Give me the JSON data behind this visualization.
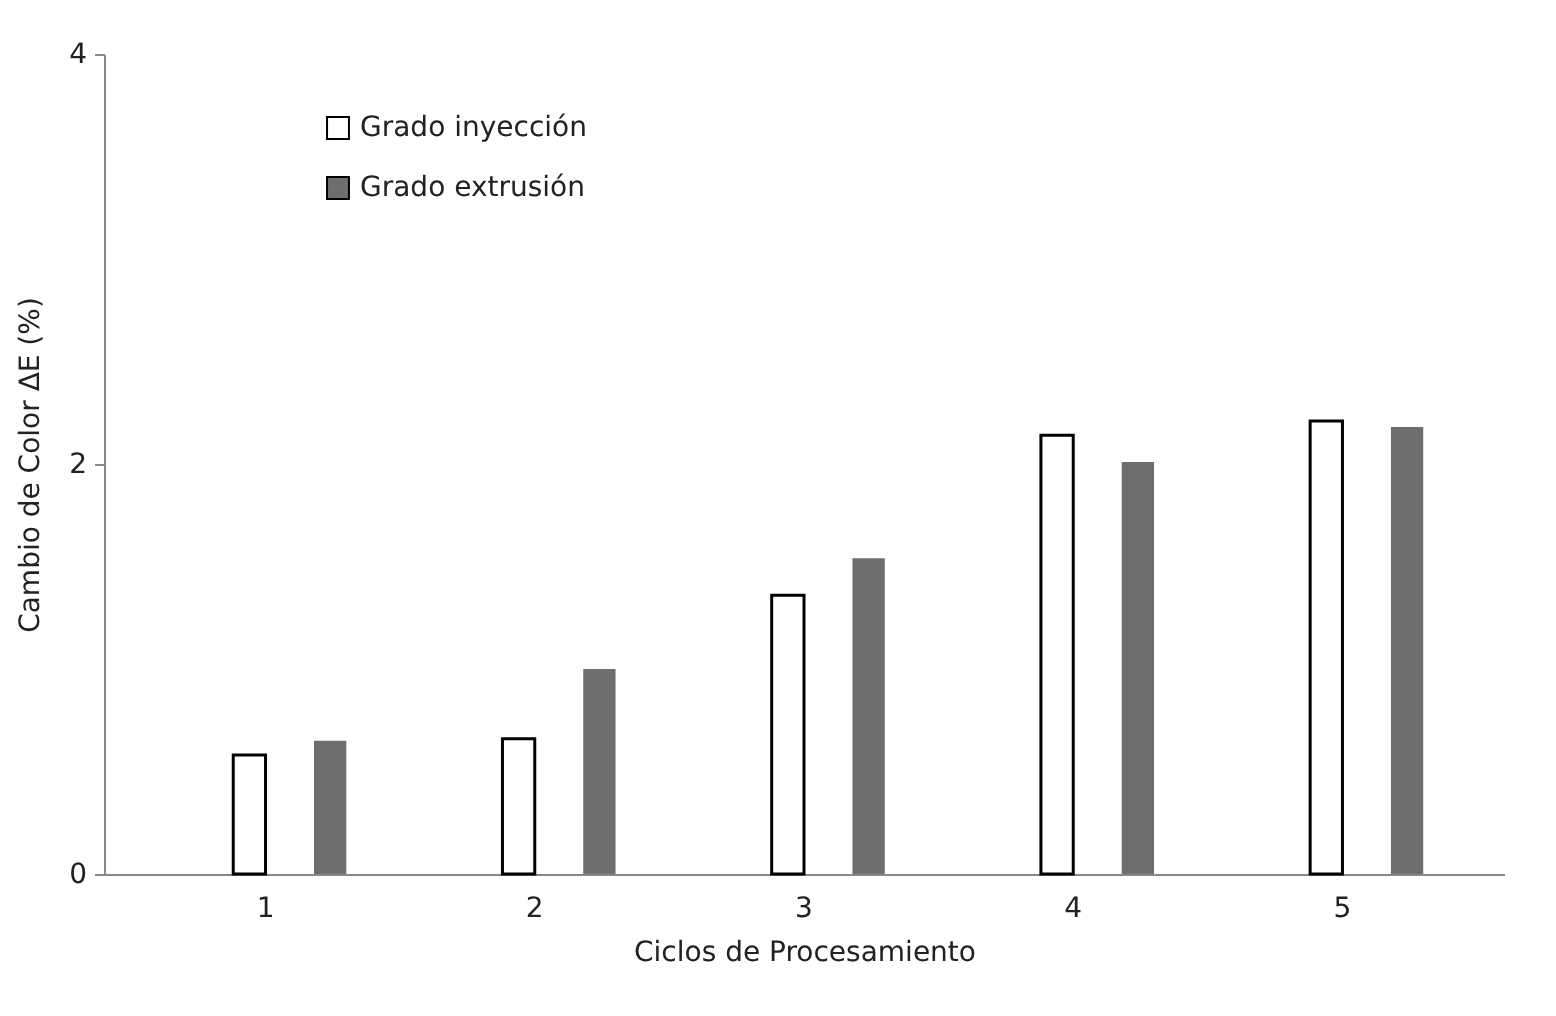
{
  "chart_data": {
    "type": "bar",
    "xlabel": "Ciclos de Procesamiento",
    "ylabel": "Cambio de Color ΔE (%)",
    "categories": [
      "1",
      "2",
      "3",
      "4",
      "5"
    ],
    "series": [
      {
        "name": "Grado inyección",
        "color": "#ffffff",
        "values": [
          0.58,
          0.66,
          1.36,
          2.14,
          2.21
        ]
      },
      {
        "name": "Grado extrusión",
        "color": "#6e6e6e",
        "values": [
          0.65,
          1.0,
          1.54,
          2.01,
          2.18
        ]
      }
    ],
    "ylim": [
      0,
      4
    ],
    "yticks": [
      0,
      2,
      4
    ],
    "grid": false,
    "legend": "top left"
  }
}
